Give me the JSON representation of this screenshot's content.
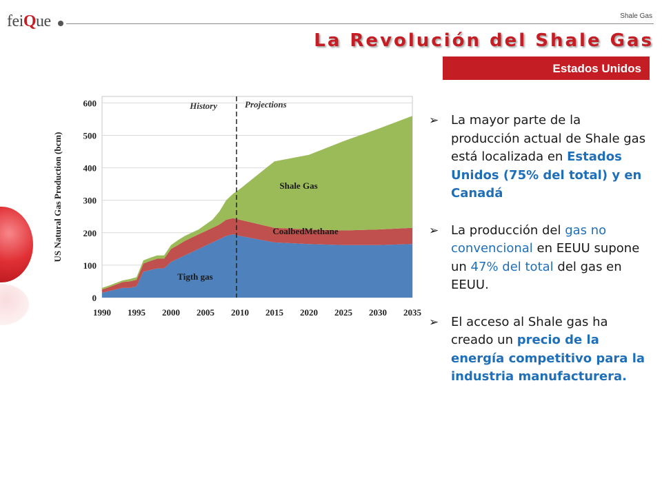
{
  "header": {
    "logo_text_a": "fei",
    "logo_text_q": "Q",
    "logo_text_b": "ue",
    "doc_tag": "Shale Gas",
    "title": "La Revolución del Shale Gas",
    "subtitle": "Estados Unidos"
  },
  "colors": {
    "accent": "#c41e24",
    "tight_gas": "#4f81bd",
    "coalbed": "#c0504d",
    "shale": "#9bbb59",
    "highlight": "#1f6fb8"
  },
  "icons": {
    "bullet": "arrow-bullet-icon"
  },
  "chart_data": {
    "type": "area",
    "stacked": true,
    "ylabel": "US Natural Gas Production (bcm)",
    "yticks": [
      0,
      100,
      200,
      300,
      400,
      500,
      600
    ],
    "xticks": [
      1990,
      1995,
      2000,
      2005,
      2010,
      2015,
      2020,
      2025,
      2030,
      2035
    ],
    "ylim": [
      0,
      620
    ],
    "xlim": [
      1990,
      2035
    ],
    "region_labels": {
      "history": "History",
      "projections": "Projections"
    },
    "divider_x": 2009.5,
    "x": [
      1990,
      1991,
      1992,
      1993,
      1994,
      1995,
      1996,
      1997,
      1998,
      1999,
      2000,
      2001,
      2002,
      2003,
      2004,
      2005,
      2006,
      2007,
      2008,
      2009,
      2010,
      2015,
      2020,
      2025,
      2030,
      2035
    ],
    "series": [
      {
        "name": "Tigth gas",
        "values": [
          15,
          20,
          25,
          30,
          30,
          35,
          80,
          85,
          90,
          90,
          110,
          120,
          130,
          140,
          150,
          160,
          170,
          180,
          190,
          195,
          190,
          170,
          165,
          162,
          162,
          165
        ]
      },
      {
        "name": "CoalbedMethane",
        "values": [
          10,
          12,
          15,
          18,
          20,
          20,
          25,
          28,
          30,
          30,
          40,
          42,
          45,
          45,
          45,
          45,
          45,
          45,
          50,
          50,
          50,
          45,
          45,
          45,
          48,
          50
        ]
      },
      {
        "name": "Shale Gas",
        "values": [
          5,
          5,
          5,
          5,
          7,
          8,
          10,
          10,
          10,
          10,
          12,
          15,
          15,
          15,
          15,
          20,
          25,
          40,
          60,
          75,
          95,
          205,
          230,
          275,
          310,
          345
        ]
      }
    ]
  },
  "bullets": [
    {
      "segments": [
        {
          "text": "La mayor parte de la producción actual de Shale gas está localizada en ",
          "style": "normal"
        },
        {
          "text": "Estados Unidos (75% del total) y en Canadá",
          "style": "highlight-bold"
        }
      ]
    },
    {
      "segments": [
        {
          "text": "La producción del ",
          "style": "normal"
        },
        {
          "text": "gas no convencional",
          "style": "highlight"
        },
        {
          "text": " en EEUU supone un ",
          "style": "normal"
        },
        {
          "text": "47%  del total",
          "style": "highlight"
        },
        {
          "text": " del gas en EEUU.",
          "style": "normal"
        }
      ]
    },
    {
      "segments": [
        {
          "text": "El acceso al Shale gas ha creado un ",
          "style": "normal"
        },
        {
          "text": "precio de la energía competitivo para la industria manufacturera.",
          "style": "highlight-bold"
        }
      ]
    }
  ]
}
